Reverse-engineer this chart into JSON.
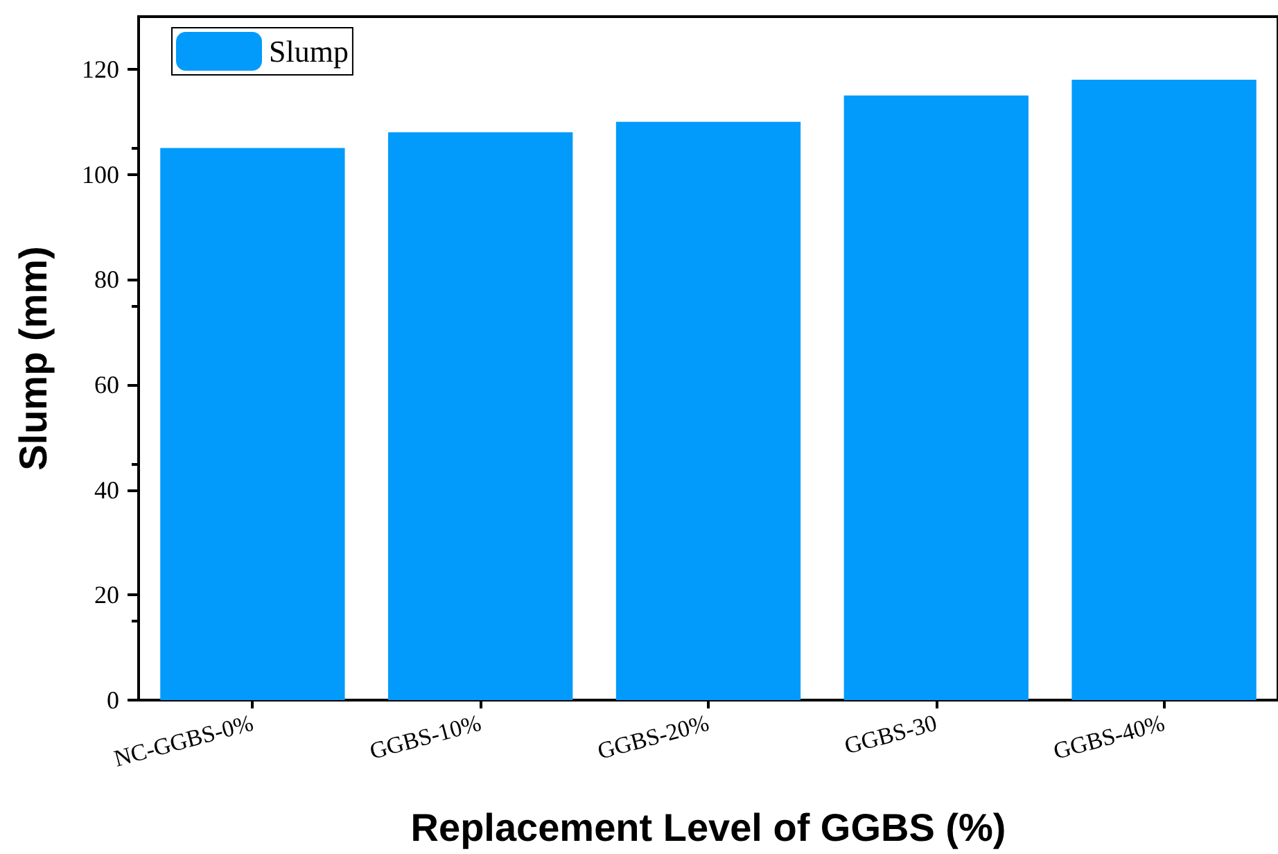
{
  "chart_data": {
    "type": "bar",
    "xlabel": "Replacement Level of GGBS (%)",
    "ylabel": "Slump (mm)",
    "categories": [
      "NC-GGBS-0%",
      "GGBS-10%",
      "GGBS-20%",
      "GGBS-30",
      "GGBS-40%"
    ],
    "series": [
      {
        "name": "Slump",
        "color": "#039bfb",
        "values": [
          105,
          108,
          110,
          115,
          118
        ]
      }
    ],
    "ylim": [
      0,
      130
    ],
    "yticks": [
      0,
      20,
      40,
      60,
      80,
      100,
      120
    ],
    "grid": false,
    "legend": "top left"
  }
}
